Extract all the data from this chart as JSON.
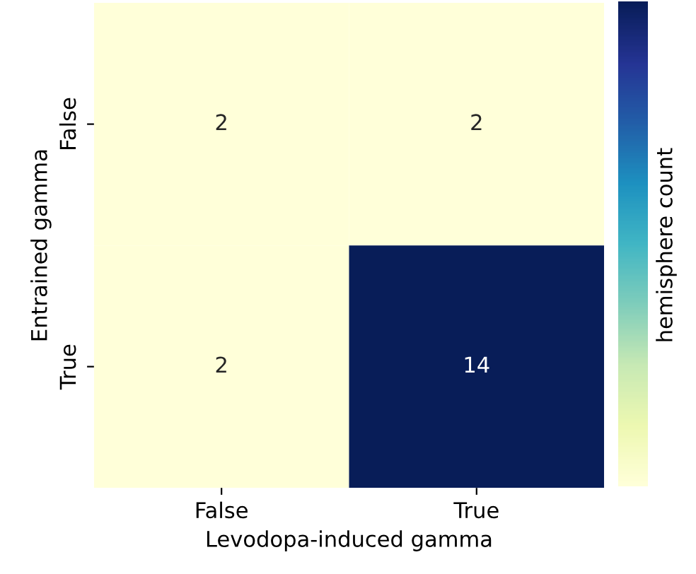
{
  "chart_data": {
    "type": "heatmap",
    "xlabel": "Levodopa-induced gamma",
    "ylabel": "Entrained gamma",
    "clabel": "hemisphere count",
    "categories": [
      "False",
      "True"
    ],
    "y_categories": [
      "False",
      "True"
    ],
    "data_labels": true,
    "cells": [
      [
        2,
        2
      ],
      [
        2,
        14
      ]
    ]
  }
}
